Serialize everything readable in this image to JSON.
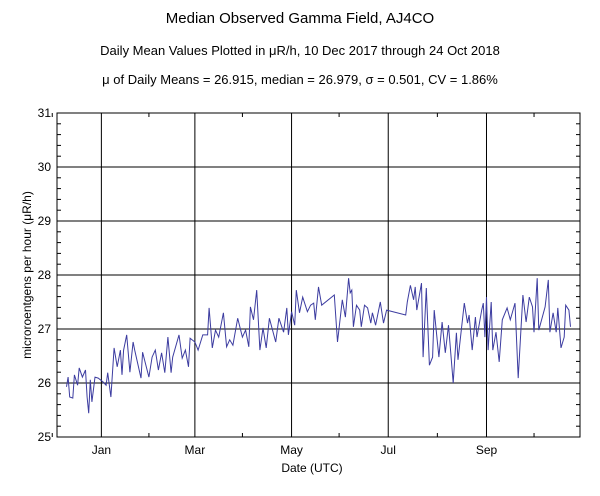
{
  "chart_data": {
    "type": "line",
    "title": "Median Observed Gamma Field, AJ4CO",
    "subtitle": "Daily Mean Values Plotted in μR/h, 10 Dec 2017 through 24 Oct 2018",
    "stats_line": "μ of Daily Means = 26.915,   median = 26.979,   σ = 0.501,   CV = 1.86%",
    "xlabel": "Date (UTC)",
    "ylabel": "microroentgens per hour (μR/h)",
    "x_units": "days since 10 Dec 2017",
    "xlim": [
      -6,
      324
    ],
    "ylim": [
      25,
      31
    ],
    "yticks": [
      25,
      26,
      27,
      28,
      29,
      30,
      31
    ],
    "xticks": [
      {
        "label": "Jan",
        "day": 22
      },
      {
        "label": "Mar",
        "day": 81
      },
      {
        "label": "May",
        "day": 142
      },
      {
        "label": "Jul",
        "day": 203
      },
      {
        "label": "Sep",
        "day": 265
      }
    ],
    "grid": true,
    "line_color": "#3c3ca0",
    "series": [
      {
        "name": "Daily mean",
        "points": [
          [
            0,
            25.93
          ],
          [
            1,
            26.11
          ],
          [
            2,
            25.74
          ],
          [
            4,
            25.72
          ],
          [
            5,
            26.15
          ],
          [
            7,
            25.96
          ],
          [
            8,
            26.28
          ],
          [
            10,
            26.11
          ],
          [
            12,
            26.24
          ],
          [
            13,
            25.74
          ],
          [
            14,
            25.44
          ],
          [
            15,
            26.06
          ],
          [
            16,
            25.65
          ],
          [
            18,
            26.11
          ],
          [
            20,
            26.09
          ],
          [
            23,
            26.02
          ],
          [
            25,
            25.96
          ],
          [
            26,
            26.19
          ],
          [
            28,
            25.74
          ],
          [
            30,
            26.65
          ],
          [
            32,
            26.3
          ],
          [
            34,
            26.61
          ],
          [
            35,
            26.15
          ],
          [
            36,
            26.61
          ],
          [
            38,
            26.89
          ],
          [
            40,
            26.2
          ],
          [
            42,
            26.76
          ],
          [
            43,
            26.61
          ],
          [
            47,
            26.09
          ],
          [
            48,
            26.57
          ],
          [
            52,
            26.11
          ],
          [
            54,
            26.48
          ],
          [
            56,
            26.61
          ],
          [
            58,
            26.24
          ],
          [
            60,
            26.56
          ],
          [
            62,
            26.19
          ],
          [
            64,
            26.85
          ],
          [
            66,
            26.19
          ],
          [
            67,
            26.48
          ],
          [
            71,
            26.89
          ],
          [
            73,
            26.46
          ],
          [
            75,
            26.61
          ],
          [
            77,
            26.3
          ],
          [
            78,
            26.83
          ],
          [
            81,
            26.76
          ],
          [
            83,
            26.61
          ],
          [
            86,
            26.89
          ],
          [
            89,
            26.89
          ],
          [
            90,
            27.39
          ],
          [
            92,
            26.65
          ],
          [
            94,
            26.98
          ],
          [
            96,
            26.85
          ],
          [
            99,
            27.3
          ],
          [
            101,
            26.67
          ],
          [
            103,
            26.8
          ],
          [
            105,
            26.7
          ],
          [
            108,
            27.2
          ],
          [
            111,
            26.85
          ],
          [
            113,
            26.98
          ],
          [
            115,
            26.67
          ],
          [
            116,
            27.41
          ],
          [
            118,
            27.17
          ],
          [
            120,
            27.72
          ],
          [
            122,
            26.61
          ],
          [
            124,
            27.02
          ],
          [
            126,
            26.65
          ],
          [
            128,
            27.2
          ],
          [
            132,
            26.76
          ],
          [
            134,
            27.2
          ],
          [
            137,
            26.94
          ],
          [
            139,
            27.39
          ],
          [
            140,
            26.89
          ],
          [
            142,
            27.32
          ],
          [
            144,
            27.07
          ],
          [
            145,
            27.72
          ],
          [
            147,
            27.3
          ],
          [
            149,
            27.59
          ],
          [
            152,
            27.32
          ],
          [
            154,
            27.44
          ],
          [
            156,
            27.48
          ],
          [
            157,
            27.17
          ],
          [
            159,
            27.78
          ],
          [
            161,
            27.44
          ],
          [
            169,
            27.63
          ],
          [
            171,
            26.76
          ],
          [
            174,
            27.54
          ],
          [
            176,
            27.22
          ],
          [
            178,
            27.94
          ],
          [
            179,
            27.67
          ],
          [
            180,
            27.72
          ],
          [
            181,
            27.04
          ],
          [
            183,
            27.44
          ],
          [
            185,
            27.35
          ],
          [
            186,
            27.04
          ],
          [
            188,
            27.44
          ],
          [
            190,
            27.39
          ],
          [
            192,
            27.11
          ],
          [
            193,
            27.3
          ],
          [
            195,
            27.07
          ],
          [
            198,
            27.5
          ],
          [
            200,
            27.11
          ],
          [
            202,
            27.35
          ],
          [
            214,
            27.26
          ],
          [
            215,
            27.5
          ],
          [
            217,
            27.81
          ],
          [
            219,
            27.54
          ],
          [
            220,
            27.78
          ],
          [
            221,
            27.35
          ],
          [
            224,
            27.85
          ],
          [
            225,
            26.48
          ],
          [
            227,
            27.76
          ],
          [
            229,
            26.33
          ],
          [
            231,
            26.48
          ],
          [
            232,
            27.35
          ],
          [
            235,
            26.48
          ],
          [
            237,
            27.13
          ],
          [
            239,
            26.56
          ],
          [
            241,
            27.07
          ],
          [
            244,
            26.0
          ],
          [
            246,
            26.93
          ],
          [
            247,
            26.43
          ],
          [
            251,
            27.48
          ],
          [
            253,
            27.11
          ],
          [
            254,
            27.26
          ],
          [
            256,
            26.61
          ],
          [
            258,
            27.22
          ],
          [
            259,
            26.85
          ],
          [
            262,
            27.35
          ],
          [
            263,
            27.48
          ],
          [
            264,
            26.85
          ],
          [
            265,
            27.59
          ],
          [
            266,
            26.61
          ],
          [
            268,
            27.5
          ],
          [
            269,
            26.61
          ],
          [
            271,
            26.94
          ],
          [
            273,
            26.39
          ],
          [
            275,
            27.17
          ],
          [
            278,
            27.39
          ],
          [
            280,
            27.17
          ],
          [
            283,
            27.48
          ],
          [
            285,
            26.09
          ],
          [
            288,
            27.63
          ],
          [
            290,
            27.13
          ],
          [
            292,
            27.59
          ],
          [
            294,
            27.41
          ],
          [
            295,
            26.94
          ],
          [
            297,
            27.94
          ],
          [
            298,
            26.98
          ],
          [
            302,
            27.41
          ],
          [
            304,
            27.91
          ],
          [
            305,
            26.94
          ],
          [
            307,
            27.3
          ],
          [
            309,
            26.94
          ],
          [
            310,
            27.39
          ],
          [
            312,
            26.65
          ],
          [
            314,
            26.85
          ],
          [
            315,
            27.44
          ],
          [
            317,
            27.35
          ],
          [
            318,
            27.04
          ]
        ]
      }
    ]
  }
}
